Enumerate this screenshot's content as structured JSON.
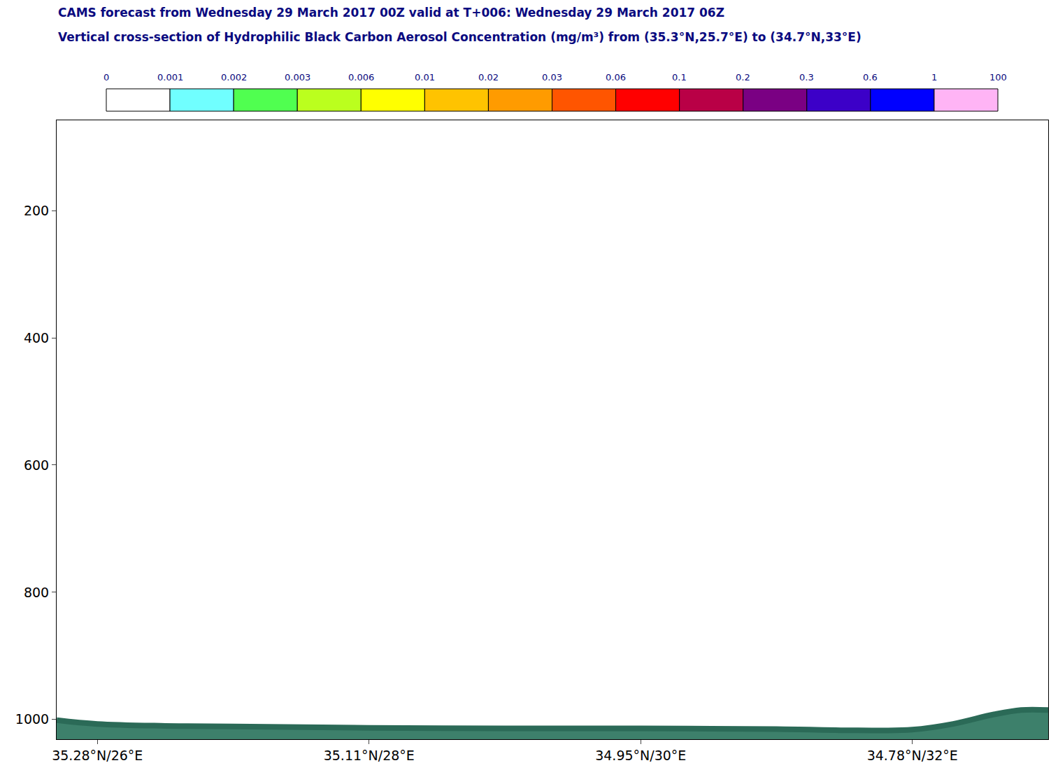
{
  "chart_data": {
    "type": "area",
    "title": "CAMS forecast from Wednesday 29 March 2017 00Z valid at T+006: Wednesday 29 March 2017 06Z",
    "subtitle": "Vertical cross-section of Hydrophilic Black Carbon Aerosol Concentration (mg/m³) from (35.3°N,25.7°E) to (34.7°N,33°E)",
    "x": [
      25.7,
      26,
      26.5,
      27,
      28,
      29,
      30,
      31,
      31.6,
      32,
      32.3,
      32.6,
      32.8,
      33
    ],
    "values": [
      1001,
      1007,
      1010,
      1011,
      1013,
      1014,
      1014,
      1015,
      1017,
      1016,
      1007,
      992,
      985,
      985
    ],
    "color": "#2b6a57",
    "xlim": [
      25.7,
      33
    ],
    "xticks": [
      {
        "value": 26,
        "label": "35.28°N/26°E"
      },
      {
        "value": 28,
        "label": "35.11°N/28°E"
      },
      {
        "value": 30,
        "label": "34.95°N/30°E"
      },
      {
        "value": 32,
        "label": "34.78°N/32°E"
      }
    ],
    "ylim": [
      1031,
      58
    ],
    "yticks": [
      200,
      400,
      600,
      800,
      1000
    ],
    "grid": false,
    "colorbar": {
      "bounds": [
        0,
        0.001,
        0.002,
        0.003,
        0.006,
        0.01,
        0.02,
        0.03,
        0.06,
        0.1,
        0.2,
        0.3,
        0.6,
        1,
        100
      ],
      "colors": [
        "#ffffff",
        "#70ffff",
        "#50ff50",
        "#bbff1e",
        "#ffff00",
        "#ffc300",
        "#ff9b00",
        "#ff5500",
        "#ff0000",
        "#b90046",
        "#7a0083",
        "#3c00c8",
        "#0000ff",
        "#ffb4f5"
      ]
    }
  }
}
